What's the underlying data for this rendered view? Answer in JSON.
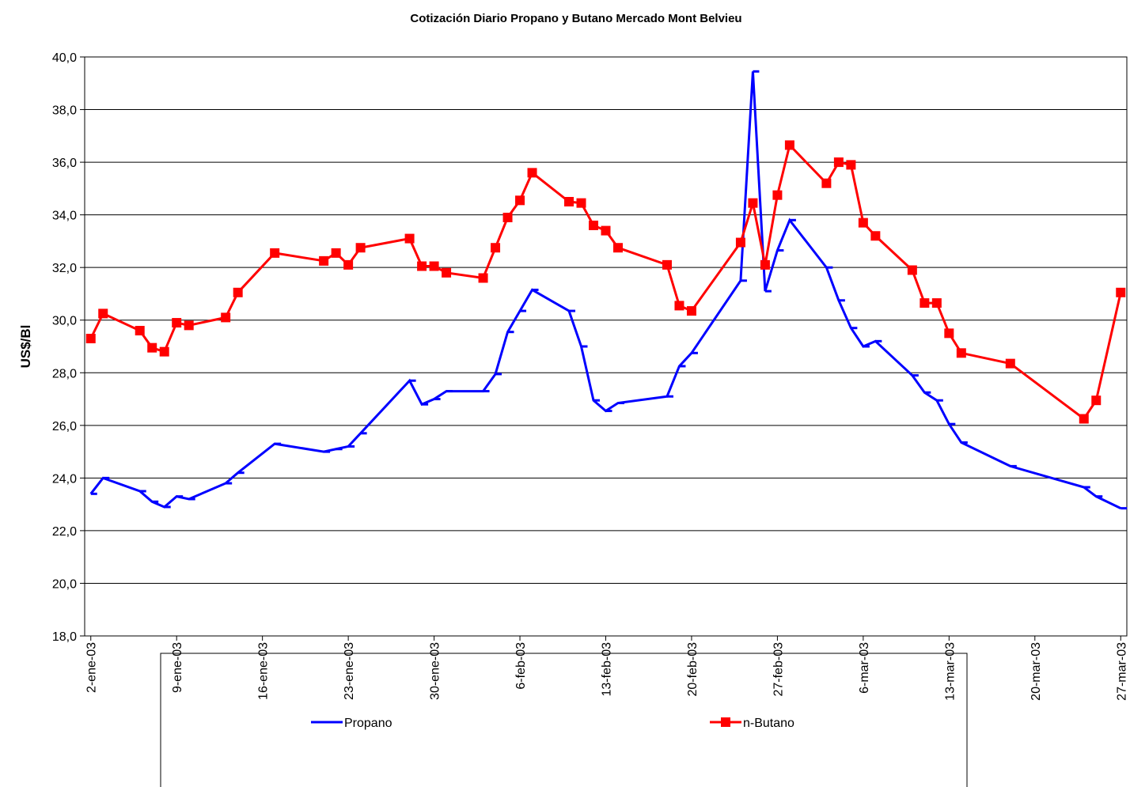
{
  "chart_data": {
    "type": "line",
    "title": "Cotización Diario Propano y Butano Mercado Mont Belvieu",
    "y_label": "US$/Bl",
    "x": [
      "2003-01-02",
      "2003-01-03",
      "2003-01-06",
      "2003-01-07",
      "2003-01-08",
      "2003-01-09",
      "2003-01-10",
      "2003-01-13",
      "2003-01-14",
      "2003-01-17",
      "2003-01-21",
      "2003-01-22",
      "2003-01-23",
      "2003-01-24",
      "2003-01-28",
      "2003-01-29",
      "2003-01-30",
      "2003-01-31",
      "2003-02-03",
      "2003-02-04",
      "2003-02-05",
      "2003-02-06",
      "2003-02-07",
      "2003-02-10",
      "2003-02-11",
      "2003-02-12",
      "2003-02-13",
      "2003-02-14",
      "2003-02-18",
      "2003-02-19",
      "2003-02-20",
      "2003-02-24",
      "2003-02-25",
      "2003-02-26",
      "2003-02-27",
      "2003-02-28",
      "2003-03-03",
      "2003-03-04",
      "2003-03-05",
      "2003-03-06",
      "2003-03-07",
      "2003-03-10",
      "2003-03-11",
      "2003-03-12",
      "2003-03-13",
      "2003-03-14",
      "2003-03-18",
      "2003-03-24",
      "2003-03-25",
      "2003-03-27"
    ],
    "series": [
      {
        "name": "Propano",
        "color": "#0000ff",
        "marker": "dash",
        "values": [
          23.4,
          24.0,
          23.5,
          23.1,
          22.9,
          23.3,
          23.2,
          23.8,
          24.2,
          25.3,
          25.0,
          25.1,
          25.2,
          25.7,
          27.7,
          26.8,
          27.0,
          27.3,
          27.3,
          27.95,
          29.55,
          30.35,
          31.15,
          30.35,
          29.0,
          26.95,
          26.55,
          26.85,
          27.1,
          28.25,
          28.75,
          31.5,
          39.45,
          31.1,
          32.65,
          33.8,
          32.0,
          30.75,
          29.7,
          29.0,
          29.2,
          27.9,
          27.25,
          26.95,
          26.05,
          25.35,
          24.45,
          23.65,
          23.3,
          22.85
        ]
      },
      {
        "name": "n-Butano",
        "color": "#ff0000",
        "marker": "square",
        "values": [
          29.3,
          30.25,
          29.6,
          28.95,
          28.8,
          29.9,
          29.8,
          30.1,
          31.05,
          32.55,
          32.25,
          32.55,
          32.1,
          32.75,
          33.1,
          32.05,
          32.05,
          31.8,
          31.6,
          32.75,
          33.9,
          34.55,
          35.6,
          34.5,
          34.45,
          33.6,
          33.4,
          32.75,
          32.1,
          30.55,
          30.35,
          32.95,
          34.45,
          32.1,
          34.75,
          36.65,
          35.2,
          36.0,
          35.9,
          33.7,
          33.2,
          31.9,
          30.65,
          30.65,
          29.5,
          28.75,
          28.35,
          26.25,
          26.95,
          31.05
        ]
      }
    ],
    "xlim": [
      "2003-01-02",
      "2003-03-27"
    ],
    "xticks": [
      {
        "value": "2003-01-02",
        "label": "2-ene-03"
      },
      {
        "value": "2003-01-09",
        "label": "9-ene-03"
      },
      {
        "value": "2003-01-16",
        "label": "16-ene-03"
      },
      {
        "value": "2003-01-23",
        "label": "23-ene-03"
      },
      {
        "value": "2003-01-30",
        "label": "30-ene-03"
      },
      {
        "value": "2003-02-06",
        "label": "6-feb-03"
      },
      {
        "value": "2003-02-13",
        "label": "13-feb-03"
      },
      {
        "value": "2003-02-20",
        "label": "20-feb-03"
      },
      {
        "value": "2003-02-27",
        "label": "27-feb-03"
      },
      {
        "value": "2003-03-06",
        "label": "6-mar-03"
      },
      {
        "value": "2003-03-13",
        "label": "13-mar-03"
      },
      {
        "value": "2003-03-20",
        "label": "20-mar-03"
      },
      {
        "value": "2003-03-27",
        "label": "27-mar-03"
      }
    ],
    "ylim": [
      18,
      40
    ],
    "yticks": [
      {
        "value": 18,
        "label": "18,0"
      },
      {
        "value": 20,
        "label": "20,0"
      },
      {
        "value": 22,
        "label": "22,0"
      },
      {
        "value": 24,
        "label": "24,0"
      },
      {
        "value": 26,
        "label": "26,0"
      },
      {
        "value": 28,
        "label": "28,0"
      },
      {
        "value": 30,
        "label": "30,0"
      },
      {
        "value": 32,
        "label": "32,0"
      },
      {
        "value": 34,
        "label": "34,0"
      },
      {
        "value": 36,
        "label": "36,0"
      },
      {
        "value": 38,
        "label": "38,0"
      },
      {
        "value": 40,
        "label": "40,0"
      }
    ],
    "grid": true,
    "legend": "bottom"
  }
}
